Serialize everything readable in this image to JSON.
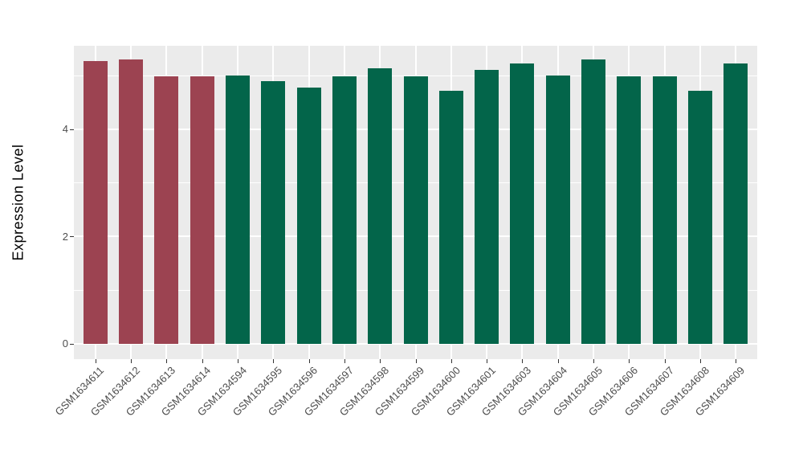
{
  "chart_data": {
    "type": "bar",
    "title": "",
    "xlabel": "",
    "ylabel": "Expression Level",
    "categories": [
      "GSM1634611",
      "GSM1634612",
      "GSM1634613",
      "GSM1634614",
      "GSM1634594",
      "GSM1634595",
      "GSM1634596",
      "GSM1634597",
      "GSM1634598",
      "GSM1634599",
      "GSM1634600",
      "GSM1634601",
      "GSM1634603",
      "GSM1634604",
      "GSM1634605",
      "GSM1634606",
      "GSM1634607",
      "GSM1634608",
      "GSM1634609"
    ],
    "values": [
      5.27,
      5.3,
      4.99,
      4.99,
      5.0,
      4.9,
      4.78,
      4.98,
      5.14,
      4.98,
      4.71,
      5.1,
      5.23,
      5.0,
      5.3,
      4.99,
      4.98,
      4.71,
      5.22
    ],
    "bar_color_keys": [
      "red",
      "red",
      "red",
      "red",
      "green",
      "green",
      "green",
      "green",
      "green",
      "green",
      "green",
      "green",
      "green",
      "green",
      "green",
      "green",
      "green",
      "green",
      "green"
    ],
    "colors": {
      "red": "#9C4351",
      "green": "#03654A"
    },
    "y_ticks": [
      0,
      2,
      4
    ],
    "y_minor_ticks": [
      1,
      3,
      5
    ],
    "ylim": [
      -0.285,
      5.555
    ],
    "legend_position": "none",
    "grid": "on",
    "panel_bg": "#EBEBEB",
    "grid_color": "#FFFFFF",
    "tick_label_color": "#4D4D4D",
    "tick_mark_color": "#333333",
    "axis_title_color": "#000000"
  }
}
